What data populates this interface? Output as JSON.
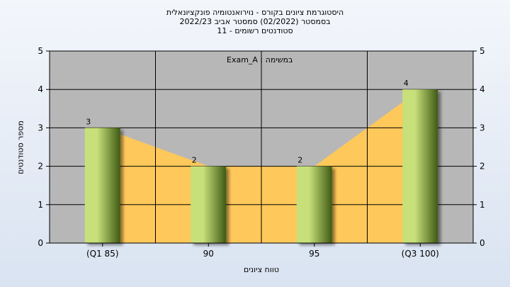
{
  "titles": {
    "line1": "היסטוגרמת ציונים בקורס - נוירואנטומיה פונקציונאלית",
    "line2": "בסמסטר  (02/2022)  סמסטר אביב 2022/23",
    "line3": "סטודנטים רשומים - 11"
  },
  "legend_text": "Exam_A : במשימה",
  "colors": {
    "plot_bg": "#b7b7b7",
    "area_fill": "#ffc85a",
    "bar_light": "#c8e07a",
    "bar_dark": "#3f5a14",
    "grid": "#000000"
  },
  "chart_data": {
    "type": "bar",
    "categories": [
      "(Q1 85)",
      "90",
      "95",
      "(Q3 100)"
    ],
    "values": [
      3,
      2,
      2,
      4
    ],
    "data_labels": [
      "3",
      "2",
      "2",
      "4"
    ],
    "xlabel": "טווח ציונים",
    "ylabel": "מספר סטודנטים",
    "ylim": [
      0,
      5
    ],
    "yticks": [
      0,
      1,
      2,
      3,
      4,
      5
    ],
    "right_axis": true,
    "area_overlay": true,
    "grid": true
  }
}
